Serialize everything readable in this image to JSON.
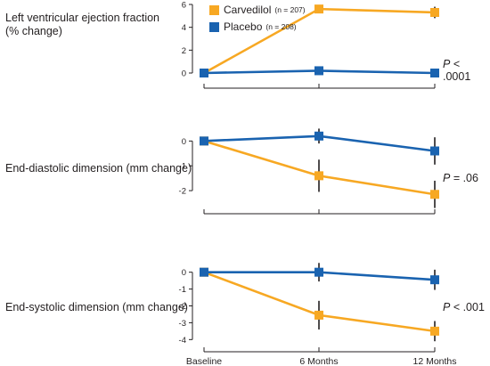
{
  "colors": {
    "carvedilol": "#f7a823",
    "placebo": "#1a63b0",
    "axis": "#231f20",
    "errorbar": "#231f20"
  },
  "legend": [
    {
      "name": "Carvedilol",
      "n": "(n = 207)",
      "series_key": "carvedilol"
    },
    {
      "name": "Placebo",
      "n": "(n = 208)",
      "series_key": "placebo"
    }
  ],
  "chart_data": [
    {
      "type": "line",
      "title": "Left ventricular ejection fraction (% change)",
      "title_lines": [
        "Left ventricular ejection fraction",
        "(% change)"
      ],
      "p_value_label": "P",
      "p_value_rest": " < .0001",
      "x": [
        "Baseline",
        "6 Months",
        "12 Months"
      ],
      "ylim": [
        0,
        6
      ],
      "yticks": [
        0,
        2,
        4,
        6
      ],
      "series": [
        {
          "name": "Carvedilol",
          "values": [
            0,
            5.6,
            5.3
          ],
          "error": [
            0,
            0,
            0.5
          ]
        },
        {
          "name": "Placebo",
          "values": [
            0,
            0.2,
            0
          ],
          "error": [
            0,
            0,
            0
          ]
        }
      ],
      "show_x_tick_labels": false
    },
    {
      "type": "line",
      "title": "End-diastolic dimension (mm change)",
      "title_lines": [
        "End-diastolic dimension (mm change)"
      ],
      "p_value_label": "P",
      "p_value_rest": " = .06",
      "x": [
        "Baseline",
        "6 Months",
        "12 Months"
      ],
      "ylim": [
        -2.5,
        0.3
      ],
      "yticks": [
        0,
        -1,
        -2
      ],
      "series": [
        {
          "name": "Carvedilol",
          "values": [
            0,
            -1.4,
            -2.15
          ],
          "error": [
            0,
            0.65,
            0.55
          ]
        },
        {
          "name": "Placebo",
          "values": [
            0,
            0.2,
            -0.4
          ],
          "error": [
            0,
            0.3,
            0.55
          ]
        }
      ],
      "show_x_tick_labels": false
    },
    {
      "type": "line",
      "title": "End-systolic dimension (mm change)",
      "title_lines": [
        "End-systolic dimension (mm change)"
      ],
      "p_value_label": "P",
      "p_value_rest": " < .001",
      "x": [
        "Baseline",
        "6 Months",
        "12 Months"
      ],
      "ylim": [
        -4.3,
        0.3
      ],
      "yticks": [
        0,
        -1,
        -2,
        -3,
        -4
      ],
      "series": [
        {
          "name": "Carvedilol",
          "values": [
            0,
            -2.55,
            -3.5
          ],
          "error": [
            0,
            0.85,
            0.6
          ]
        },
        {
          "name": "Placebo",
          "values": [
            0,
            0,
            -0.45
          ],
          "error": [
            0,
            0.55,
            0.6
          ]
        }
      ],
      "show_x_tick_labels": true
    }
  ]
}
